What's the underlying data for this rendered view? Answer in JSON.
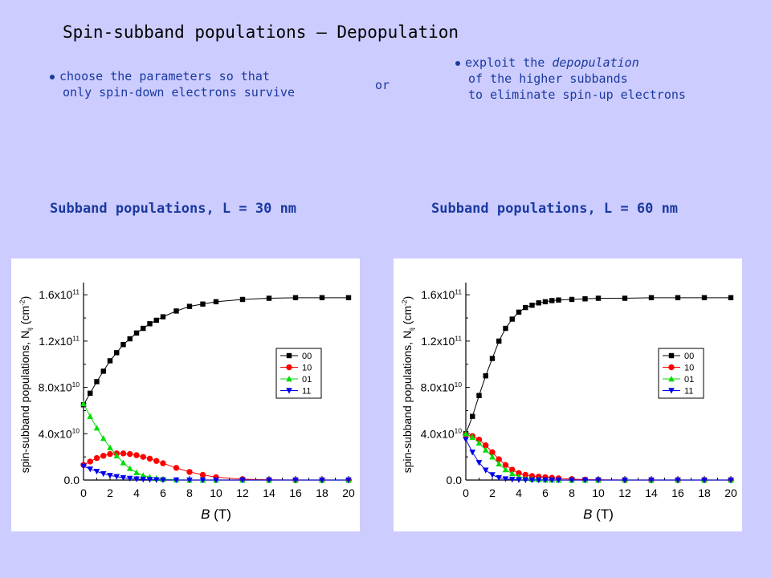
{
  "title": "Spin-subband populations – Depopulation",
  "bullets": {
    "left": [
      "choose the parameters so that",
      "only spin-down electrons survive"
    ],
    "or": "or",
    "right": {
      "line1_prefix": "exploit the ",
      "line1_italic": "depopulation",
      "line2": "of the higher subbands",
      "line3": "to eliminate spin-up electrons"
    }
  },
  "subtitles": [
    "Subband populations, L = 30 nm",
    "Subband populations, L = 60 nm"
  ],
  "legend_colors": {
    "00": "#000000",
    "10": "#ff0000",
    "01": "#00dd00",
    "11": "#0000ee"
  },
  "chart_data": [
    {
      "type": "line",
      "title": "Subband populations, L = 30 nm",
      "xlabel": "B (T)",
      "ylabel": "spin-subband populations, N_ij (cm^-2)",
      "xlim": [
        0,
        20
      ],
      "ylim": [
        0,
        165000000000.0
      ],
      "xticks": [
        0,
        2,
        4,
        6,
        8,
        10,
        12,
        14,
        16,
        18,
        20
      ],
      "yticks": [
        {
          "value": 0,
          "label": "0.0"
        },
        {
          "value": 40000000000.0,
          "label": "4.0x10^10"
        },
        {
          "value": 80000000000.0,
          "label": "8.0x10^10"
        },
        {
          "value": 120000000000.0,
          "label": "1.2x10^11"
        },
        {
          "value": 160000000000.0,
          "label": "1.6x10^11"
        }
      ],
      "legend": "right",
      "series": [
        {
          "name": "00",
          "marker": "square",
          "x": [
            0,
            0.5,
            1,
            1.5,
            2,
            2.5,
            3,
            3.5,
            4,
            4.5,
            5,
            5.5,
            6,
            7,
            8,
            9,
            10,
            12,
            14,
            16,
            18,
            20
          ],
          "y": [
            65000000000.0,
            75000000000.0,
            85000000000.0,
            94000000000.0,
            103000000000.0,
            110000000000.0,
            117000000000.0,
            122000000000.0,
            127000000000.0,
            131000000000.0,
            135000000000.0,
            138000000000.0,
            141000000000.0,
            146000000000.0,
            150000000000.0,
            152000000000.0,
            154000000000.0,
            156000000000.0,
            157000000000.0,
            157500000000.0,
            157500000000.0,
            157500000000.0
          ]
        },
        {
          "name": "10",
          "marker": "circle",
          "x": [
            0,
            0.5,
            1,
            1.5,
            2,
            2.5,
            3,
            3.5,
            4,
            4.5,
            5,
            5.5,
            6,
            7,
            8,
            9,
            10,
            12,
            14,
            16,
            18,
            20
          ],
          "y": [
            13000000000.0,
            16000000000.0,
            19000000000.0,
            21000000000.0,
            22500000000.0,
            23000000000.0,
            23000000000.0,
            22500000000.0,
            21500000000.0,
            20000000000.0,
            18500000000.0,
            16500000000.0,
            14500000000.0,
            10500000000.0,
            7000000000.0,
            4500000000.0,
            2500000000.0,
            800000000.0,
            200000000.0,
            0,
            0,
            0
          ]
        },
        {
          "name": "01",
          "marker": "triangle-up",
          "x": [
            0,
            0.5,
            1,
            1.5,
            2,
            2.5,
            3,
            3.5,
            4,
            4.5,
            5,
            5.5,
            6,
            7,
            8,
            9,
            10,
            12,
            14,
            16,
            18,
            20
          ],
          "y": [
            66000000000.0,
            55000000000.0,
            45000000000.0,
            36000000000.0,
            28000000000.0,
            21000000000.0,
            15000000000.0,
            10000000000.0,
            6500000000.0,
            4000000000.0,
            2500000000.0,
            1500000000.0,
            800000000.0,
            200000000.0,
            0,
            0,
            0,
            0,
            0,
            0,
            0,
            0
          ]
        },
        {
          "name": "11",
          "marker": "triangle-down",
          "x": [
            0,
            0.5,
            1,
            1.5,
            2,
            2.5,
            3,
            3.5,
            4,
            4.5,
            5,
            5.5,
            6,
            7,
            8,
            9,
            10,
            12,
            14,
            16,
            18,
            20
          ],
          "y": [
            12000000000.0,
            9500000000.0,
            7500000000.0,
            5500000000.0,
            4000000000.0,
            3000000000.0,
            2000000000.0,
            1400000000.0,
            900000000.0,
            600000000.0,
            400000000.0,
            200000000.0,
            100000000.0,
            0,
            0,
            0,
            0,
            0,
            0,
            0,
            0,
            0
          ]
        }
      ]
    },
    {
      "type": "line",
      "title": "Subband populations, L = 60 nm",
      "xlabel": "B (T)",
      "ylabel": "spin-subband populations, N_ij (cm^-2)",
      "xlim": [
        0,
        20
      ],
      "ylim": [
        0,
        165000000000.0
      ],
      "xticks": [
        0,
        2,
        4,
        6,
        8,
        10,
        12,
        14,
        16,
        18,
        20
      ],
      "yticks": [
        {
          "value": 0,
          "label": "0.0"
        },
        {
          "value": 40000000000.0,
          "label": "4.0x10^10"
        },
        {
          "value": 80000000000.0,
          "label": "8.0x10^10"
        },
        {
          "value": 120000000000.0,
          "label": "1.2x10^11"
        },
        {
          "value": 160000000000.0,
          "label": "1.6x10^11"
        }
      ],
      "legend": "right",
      "series": [
        {
          "name": "00",
          "marker": "square",
          "x": [
            0,
            0.5,
            1,
            1.5,
            2,
            2.5,
            3,
            3.5,
            4,
            4.5,
            5,
            5.5,
            6,
            6.5,
            7,
            8,
            9,
            10,
            12,
            14,
            16,
            18,
            20
          ],
          "y": [
            40000000000.0,
            55000000000.0,
            73000000000.0,
            90000000000.0,
            105000000000.0,
            120000000000.0,
            131000000000.0,
            139000000000.0,
            145000000000.0,
            149000000000.0,
            151000000000.0,
            153000000000.0,
            154000000000.0,
            155000000000.0,
            155500000000.0,
            156000000000.0,
            156500000000.0,
            157000000000.0,
            157000000000.0,
            157500000000.0,
            157500000000.0,
            157500000000.0,
            157500000000.0
          ]
        },
        {
          "name": "10",
          "marker": "circle",
          "x": [
            0,
            0.5,
            1,
            1.5,
            2,
            2.5,
            3,
            3.5,
            4,
            4.5,
            5,
            5.5,
            6,
            6.5,
            7,
            8,
            9,
            10,
            12,
            14,
            16,
            18,
            20
          ],
          "y": [
            39000000000.0,
            38000000000.0,
            35000000000.0,
            30000000000.0,
            24000000000.0,
            18000000000.0,
            13000000000.0,
            9000000000.0,
            6000000000.0,
            4500000000.0,
            3500000000.0,
            3000000000.0,
            2500000000.0,
            2000000000.0,
            1500000000.0,
            800000000.0,
            400000000.0,
            200000000.0,
            0,
            0,
            0,
            0,
            0
          ]
        },
        {
          "name": "01",
          "marker": "triangle-up",
          "x": [
            0,
            0.5,
            1,
            1.5,
            2,
            2.5,
            3,
            3.5,
            4,
            4.5,
            5,
            5.5,
            6,
            6.5,
            7,
            8,
            9,
            10,
            12,
            14,
            16,
            18,
            20
          ],
          "y": [
            40000000000.0,
            37000000000.0,
            32000000000.0,
            26000000000.0,
            20000000000.0,
            14000000000.0,
            9000000000.0,
            5500000000.0,
            3000000000.0,
            1500000000.0,
            800000000.0,
            400000000.0,
            200000000.0,
            100000000.0,
            0,
            0,
            0,
            0,
            0,
            0,
            0,
            0,
            0
          ]
        },
        {
          "name": "11",
          "marker": "triangle-down",
          "x": [
            0,
            0.5,
            1,
            1.5,
            2,
            2.5,
            3,
            3.5,
            4,
            4.5,
            5,
            5.5,
            6,
            6.5,
            7,
            8,
            9,
            10,
            12,
            14,
            16,
            18,
            20
          ],
          "y": [
            35000000000.0,
            24000000000.0,
            15000000000.0,
            8500000000.0,
            4500000000.0,
            2000000000.0,
            1000000000.0,
            500000000.0,
            200000000.0,
            100000000.0,
            0,
            0,
            0,
            0,
            0,
            0,
            0,
            0,
            0,
            0,
            0,
            0,
            0
          ]
        }
      ]
    }
  ]
}
